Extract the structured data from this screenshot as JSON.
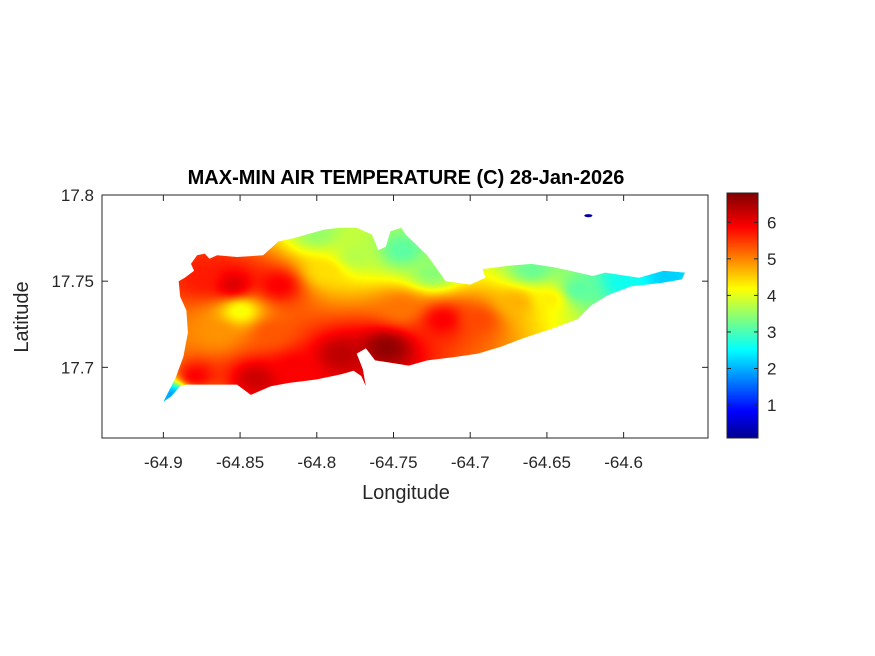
{
  "chart_data": {
    "type": "heatmap",
    "title": "MAX-MIN AIR TEMPERATURE (C) 28-Jan-2026",
    "xlabel": "Longitude",
    "ylabel": "Latitude",
    "xlim": [
      -64.94,
      -64.545
    ],
    "ylim": [
      17.659,
      17.8
    ],
    "xticks": [
      -64.9,
      -64.85,
      -64.8,
      -64.75,
      -64.7,
      -64.65,
      -64.6
    ],
    "xtick_labels": [
      "-64.9",
      "-64.85",
      "-64.8",
      "-64.75",
      "-64.7",
      "-64.65",
      "-64.6"
    ],
    "yticks": [
      17.7,
      17.75,
      17.8
    ],
    "ytick_labels": [
      "17.7",
      "17.75",
      "17.8"
    ],
    "colorbar": {
      "colormap": "jet",
      "range": [
        0.1,
        6.8
      ],
      "ticks": [
        1,
        2,
        3,
        4,
        5,
        6
      ],
      "tick_labels": [
        "1",
        "2",
        "3",
        "4",
        "5",
        "6"
      ]
    },
    "grid": false,
    "island_outline": [
      [
        -64.9,
        17.68
      ],
      [
        -64.895,
        17.683
      ],
      [
        -64.889,
        17.689
      ],
      [
        -64.885,
        17.69
      ],
      [
        -64.868,
        17.69
      ],
      [
        -64.852,
        17.69
      ],
      [
        -64.843,
        17.684
      ],
      [
        -64.83,
        17.689
      ],
      [
        -64.818,
        17.691
      ],
      [
        -64.8,
        17.693
      ],
      [
        -64.784,
        17.696
      ],
      [
        -64.776,
        17.698
      ],
      [
        -64.771,
        17.695
      ],
      [
        -64.768,
        17.689
      ],
      [
        -64.77,
        17.699
      ],
      [
        -64.774,
        17.708
      ],
      [
        -64.768,
        17.711
      ],
      [
        -64.762,
        17.704
      ],
      [
        -64.754,
        17.703
      ],
      [
        -64.74,
        17.701
      ],
      [
        -64.728,
        17.704
      ],
      [
        -64.71,
        17.706
      ],
      [
        -64.695,
        17.708
      ],
      [
        -64.68,
        17.712
      ],
      [
        -64.665,
        17.717
      ],
      [
        -64.648,
        17.722
      ],
      [
        -64.63,
        17.728
      ],
      [
        -64.621,
        17.736
      ],
      [
        -64.61,
        17.742
      ],
      [
        -64.595,
        17.747
      ],
      [
        -64.575,
        17.749
      ],
      [
        -64.562,
        17.751
      ],
      [
        -64.56,
        17.755
      ],
      [
        -64.574,
        17.756
      ],
      [
        -64.59,
        17.752
      ],
      [
        -64.612,
        17.755
      ],
      [
        -64.62,
        17.753
      ],
      [
        -64.635,
        17.756
      ],
      [
        -64.645,
        17.758
      ],
      [
        -64.66,
        17.76
      ],
      [
        -64.675,
        17.759
      ],
      [
        -64.692,
        17.757
      ],
      [
        -64.69,
        17.752
      ],
      [
        -64.7,
        17.748
      ],
      [
        -64.716,
        17.75
      ],
      [
        -64.728,
        17.765
      ],
      [
        -64.742,
        17.777
      ],
      [
        -64.745,
        17.781
      ],
      [
        -64.752,
        17.779
      ],
      [
        -64.755,
        17.77
      ],
      [
        -64.76,
        17.768
      ],
      [
        -64.764,
        17.777
      ],
      [
        -64.774,
        17.781
      ],
      [
        -64.785,
        17.781
      ],
      [
        -64.795,
        17.78
      ],
      [
        -64.815,
        17.775
      ],
      [
        -64.825,
        17.773
      ],
      [
        -64.835,
        17.765
      ],
      [
        -64.852,
        17.764
      ],
      [
        -64.865,
        17.765
      ],
      [
        -64.87,
        17.763
      ],
      [
        -64.873,
        17.766
      ],
      [
        -64.878,
        17.765
      ],
      [
        -64.882,
        17.76
      ],
      [
        -64.88,
        17.756
      ],
      [
        -64.886,
        17.752
      ],
      [
        -64.89,
        17.75
      ],
      [
        -64.889,
        17.741
      ],
      [
        -64.885,
        17.733
      ],
      [
        -64.884,
        17.72
      ],
      [
        -64.887,
        17.706
      ],
      [
        -64.892,
        17.694
      ],
      [
        -64.9,
        17.68
      ]
    ],
    "hot_spots": [
      {
        "lon": -64.755,
        "lat": 17.712,
        "value": 6.7
      },
      {
        "lon": -64.785,
        "lat": 17.708,
        "value": 6.4
      },
      {
        "lon": -64.84,
        "lat": 17.694,
        "value": 6.3
      },
      {
        "lon": -64.88,
        "lat": 17.695,
        "value": 6.0
      },
      {
        "lon": -64.815,
        "lat": 17.7,
        "value": 6.0
      },
      {
        "lon": -64.855,
        "lat": 17.748,
        "value": 6.2
      },
      {
        "lon": -64.825,
        "lat": 17.748,
        "value": 6.0
      },
      {
        "lon": -64.875,
        "lat": 17.752,
        "value": 5.8
      },
      {
        "lon": -64.718,
        "lat": 17.728,
        "value": 6.0
      },
      {
        "lon": -64.695,
        "lat": 17.728,
        "value": 5.5
      },
      {
        "lon": -64.83,
        "lat": 17.72,
        "value": 5.4
      },
      {
        "lon": -64.865,
        "lat": 17.72,
        "value": 5.0
      },
      {
        "lon": -64.745,
        "lat": 17.735,
        "value": 5.2
      },
      {
        "lon": -64.67,
        "lat": 17.738,
        "value": 4.8
      },
      {
        "lon": -64.648,
        "lat": 17.74,
        "value": 4.4
      },
      {
        "lon": -64.85,
        "lat": 17.733,
        "value": 4.2
      },
      {
        "lon": -64.795,
        "lat": 17.756,
        "value": 4.5
      },
      {
        "lon": -64.775,
        "lat": 17.765,
        "value": 3.8
      },
      {
        "lon": -64.745,
        "lat": 17.768,
        "value": 3.2
      },
      {
        "lon": -64.725,
        "lat": 17.755,
        "value": 3.5
      },
      {
        "lon": -64.63,
        "lat": 17.745,
        "value": 3.2
      },
      {
        "lon": -64.6,
        "lat": 17.75,
        "value": 2.7
      },
      {
        "lon": -64.572,
        "lat": 17.753,
        "value": 2.3
      },
      {
        "lon": -64.895,
        "lat": 17.684,
        "value": 2.0
      },
      {
        "lon": -64.66,
        "lat": 17.757,
        "value": 3.3
      },
      {
        "lon": -64.8,
        "lat": 17.778,
        "value": 3.6
      }
    ],
    "islets": [
      {
        "lon": -64.623,
        "lat": 17.788,
        "value": 0.3
      }
    ]
  }
}
